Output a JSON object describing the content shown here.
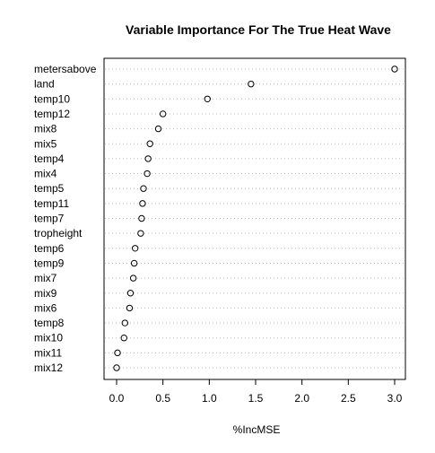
{
  "chart_data": {
    "type": "scatter",
    "title": "Variable Importance For The True Heat Wave",
    "xlabel": "%IncMSE",
    "ylabel": "",
    "xlim": [
      -0.1,
      3.05
    ],
    "xticks": [
      "0.0",
      "0.5",
      "1.0",
      "1.5",
      "2.0",
      "2.5",
      "3.0"
    ],
    "xtick_values": [
      0.0,
      0.5,
      1.0,
      1.5,
      2.0,
      2.5,
      3.0
    ],
    "grid": "dotted horizontal lines",
    "legend": "none",
    "categories": [
      "metersabove",
      "land",
      "temp10",
      "temp12",
      "mix8",
      "mix5",
      "temp4",
      "mix4",
      "temp5",
      "temp11",
      "temp7",
      "tropheight",
      "temp6",
      "temp9",
      "mix7",
      "mix9",
      "mix6",
      "temp8",
      "mix10",
      "mix11",
      "mix12"
    ],
    "values": [
      3.0,
      1.45,
      0.98,
      0.5,
      0.45,
      0.36,
      0.34,
      0.33,
      0.29,
      0.28,
      0.27,
      0.26,
      0.2,
      0.19,
      0.18,
      0.15,
      0.14,
      0.09,
      0.08,
      0.01,
      0.0
    ]
  }
}
